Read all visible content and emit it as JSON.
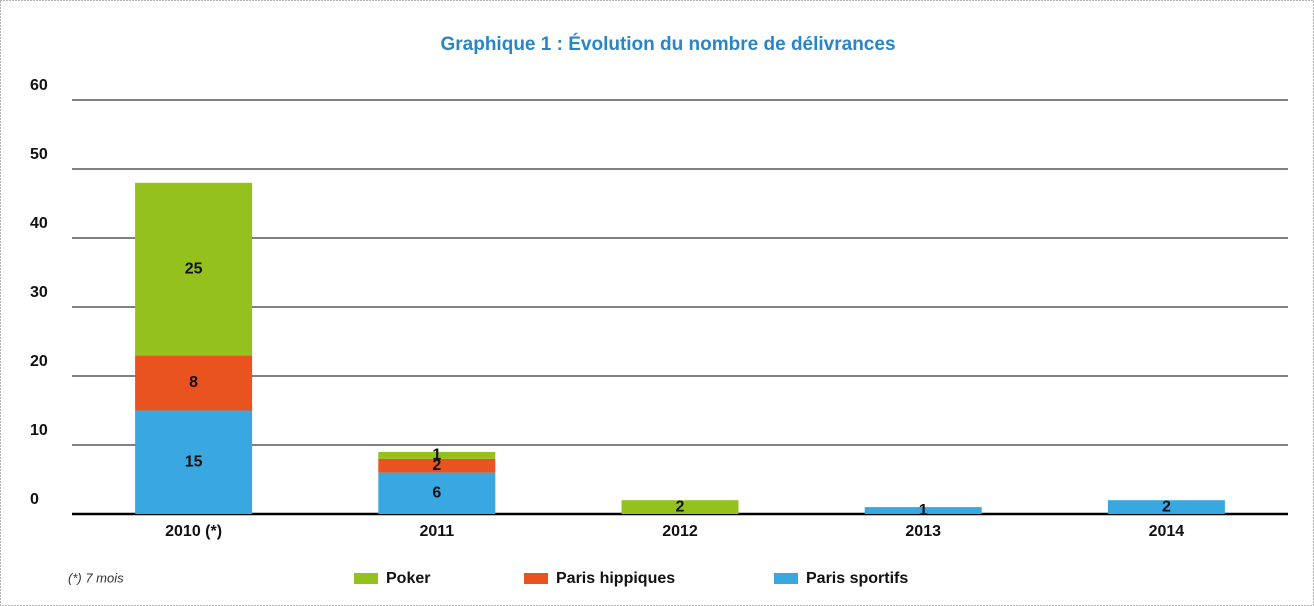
{
  "chart_data": {
    "type": "stacked_bar",
    "title": "Graphique 1 : Évolution du nombre de délivrances",
    "categories": [
      "2010 (*)",
      "2011",
      "2012",
      "2013",
      "2014"
    ],
    "series": [
      {
        "name": "Poker",
        "color": "#95c11f",
        "values": [
          25,
          1,
          2,
          0,
          0
        ]
      },
      {
        "name": "Paris hippiques",
        "color": "#e8531f",
        "values": [
          8,
          2,
          0,
          0,
          0
        ]
      },
      {
        "name": "Paris sportifs",
        "color": "#3aa8e0",
        "values": [
          15,
          6,
          0,
          1,
          2
        ]
      }
    ],
    "ylim": [
      0,
      60
    ],
    "yticks": [
      0,
      10,
      20,
      30,
      40,
      50,
      60
    ],
    "grid": true,
    "legend": "bottom",
    "footnote": "(*) 7 mois"
  }
}
